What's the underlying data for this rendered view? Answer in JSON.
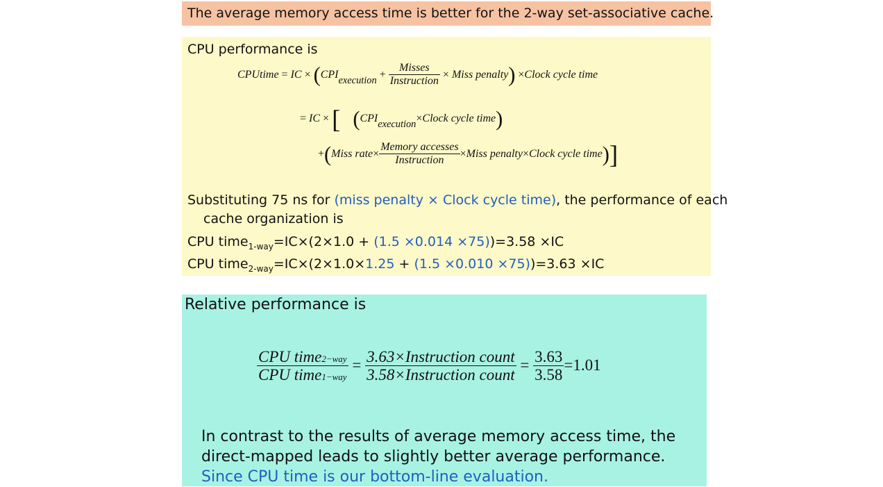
{
  "banner": {
    "text": "The average memory access time is better for the 2-way set-associative cache."
  },
  "cpu_performance": {
    "heading": "CPU performance is",
    "formula": {
      "cputime": "CPUtime",
      "eq": "=",
      "ic": "IC",
      "times": "×",
      "cpi": "CPI",
      "execution": "execution",
      "plus": "+",
      "misses": "Misses",
      "instruction": "Instruction",
      "miss_penalty": "Miss penalty",
      "clock_cycle_time": "Clock cycle time",
      "miss_rate": "Miss rate",
      "memory_accesses": "Memory accesses",
      "miss_penalty_compact": "Miss penalty",
      "clock_compact": "Clock cycle time"
    },
    "substitute": {
      "part1": "Substituting 75 ns for ",
      "part2": "(miss penalty × Clock cycle time)",
      "part3": ", the performance of each",
      "part4": "cache organization is"
    },
    "one_way": {
      "label": "CPU time",
      "sub": "1-way",
      "a": "=IC×(2×1.0 + ",
      "b": "(1.5 ×0.014 ×75)",
      "c": ")=3.58 ×IC"
    },
    "two_way": {
      "label": "CPU time",
      "sub": "2-way",
      "a": "=IC×(2×1.0×",
      "b": "1.25",
      "c": " + ",
      "d": "(1.5 ×0.010 ×75)",
      "e": ")=3.63 ×IC"
    }
  },
  "relative": {
    "heading": "Relative performance is",
    "ratio": {
      "cpu_time": "CPU time",
      "sub_2way": "2−way",
      "sub_1way": "1−way",
      "eq": "=",
      "num_mid": "3.63×Instruction count",
      "den_mid": "3.58×Instruction count",
      "num_right": "3.63",
      "den_right": "3.58",
      "result": "=1.01"
    },
    "conclusion_black": "In contrast to the results of average memory access time, the direct-mapped leads to slightly better average performance. ",
    "conclusion_blue": "Since CPU time is our bottom-line evaluation."
  }
}
